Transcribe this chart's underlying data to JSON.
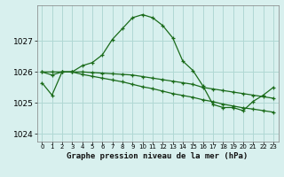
{
  "title": "Graphe pression niveau de la mer (hPa)",
  "background_color": "#d8f0ee",
  "grid_color": "#b0d8d4",
  "line_color": "#1a6b1a",
  "hours": [
    0,
    1,
    2,
    3,
    4,
    5,
    6,
    7,
    8,
    9,
    10,
    11,
    12,
    13,
    14,
    15,
    16,
    17,
    18,
    19,
    20,
    21,
    22,
    23
  ],
  "series1": [
    1025.65,
    1025.25,
    1026.0,
    1026.0,
    1026.2,
    1026.3,
    1026.55,
    1027.05,
    1027.4,
    1027.75,
    1027.85,
    1027.75,
    1027.5,
    1027.1,
    1026.35,
    1026.05,
    1025.55,
    1024.95,
    1024.85,
    1024.85,
    1024.75,
    1025.05,
    1025.25,
    1025.5
  ],
  "series2": [
    1026.0,
    1026.0,
    1026.0,
    1026.0,
    1026.0,
    1025.98,
    1025.96,
    1025.94,
    1025.92,
    1025.9,
    1025.85,
    1025.8,
    1025.75,
    1025.7,
    1025.65,
    1025.6,
    1025.5,
    1025.45,
    1025.4,
    1025.35,
    1025.3,
    1025.25,
    1025.2,
    1025.15
  ],
  "series3": [
    1026.0,
    1025.9,
    1026.0,
    1026.0,
    1025.92,
    1025.86,
    1025.8,
    1025.74,
    1025.68,
    1025.6,
    1025.52,
    1025.46,
    1025.38,
    1025.3,
    1025.24,
    1025.18,
    1025.1,
    1025.04,
    1024.96,
    1024.9,
    1024.84,
    1024.8,
    1024.75,
    1024.7
  ],
  "ylim": [
    1023.75,
    1028.15
  ],
  "yticks": [
    1024,
    1025,
    1026,
    1027
  ],
  "marker": "+",
  "markersize": 3.5,
  "linewidth": 0.9
}
